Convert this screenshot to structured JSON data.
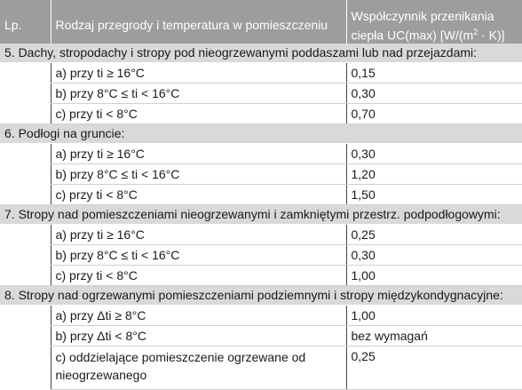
{
  "header": {
    "lp": "Lp.",
    "name": "Rodzaj przegrody i temperatura w pomieszczeniu",
    "value_line1": "Współczynnik przenikania",
    "value_line2_pre": "ciepła UC(max) [W/(m",
    "value_line2_sup": "2",
    "value_line2_post": " · K)]"
  },
  "sections": [
    {
      "title": "5. Dachy, stropodachy i stropy pod nieogrzewanymi poddaszami lub nad przejazdami:",
      "rows": [
        {
          "name": "a) przy ti ≥ 16°C",
          "value": "0,15"
        },
        {
          "name": "b) przy 8°C ≤ ti < 16°C",
          "value": "0,30"
        },
        {
          "name": "c) przy ti < 8°C",
          "value": "0,70"
        }
      ]
    },
    {
      "title": "6. Podłogi na gruncie:",
      "rows": [
        {
          "name": "a) przy ti ≥ 16°C",
          "value": "0,30"
        },
        {
          "name": "b) przy 8°C ≤ ti < 16°C",
          "value": "1,20"
        },
        {
          "name": "c) przy ti < 8°C",
          "value": "1,50"
        }
      ]
    },
    {
      "title": "7. Stropy nad pomieszczeniami nieogrzewanymi i zamkniętymi przestrz. podpodłogowymi:",
      "rows": [
        {
          "name": "a) przy ti ≥ 16°C",
          "value": "0,25"
        },
        {
          "name": "b) przy 8°C ≤ ti < 16°C",
          "value": "0,30"
        },
        {
          "name": "c) przy ti < 8°C",
          "value": "1,00"
        }
      ]
    },
    {
      "title": "8. Stropy nad ogrzewanymi pomieszczeniami podziemnymi i stropy międzykondygnacyjne:",
      "rows": [
        {
          "name": "a) przy Δti ≥ 8°C",
          "value": "1,00"
        },
        {
          "name": "b) przy Δti < 8°C",
          "value": "bez wymagań"
        },
        {
          "name": "c) oddzielające pomieszczenie ogrzewane od nieogrzewanego",
          "value": "0,25",
          "tall": true
        }
      ]
    }
  ]
}
